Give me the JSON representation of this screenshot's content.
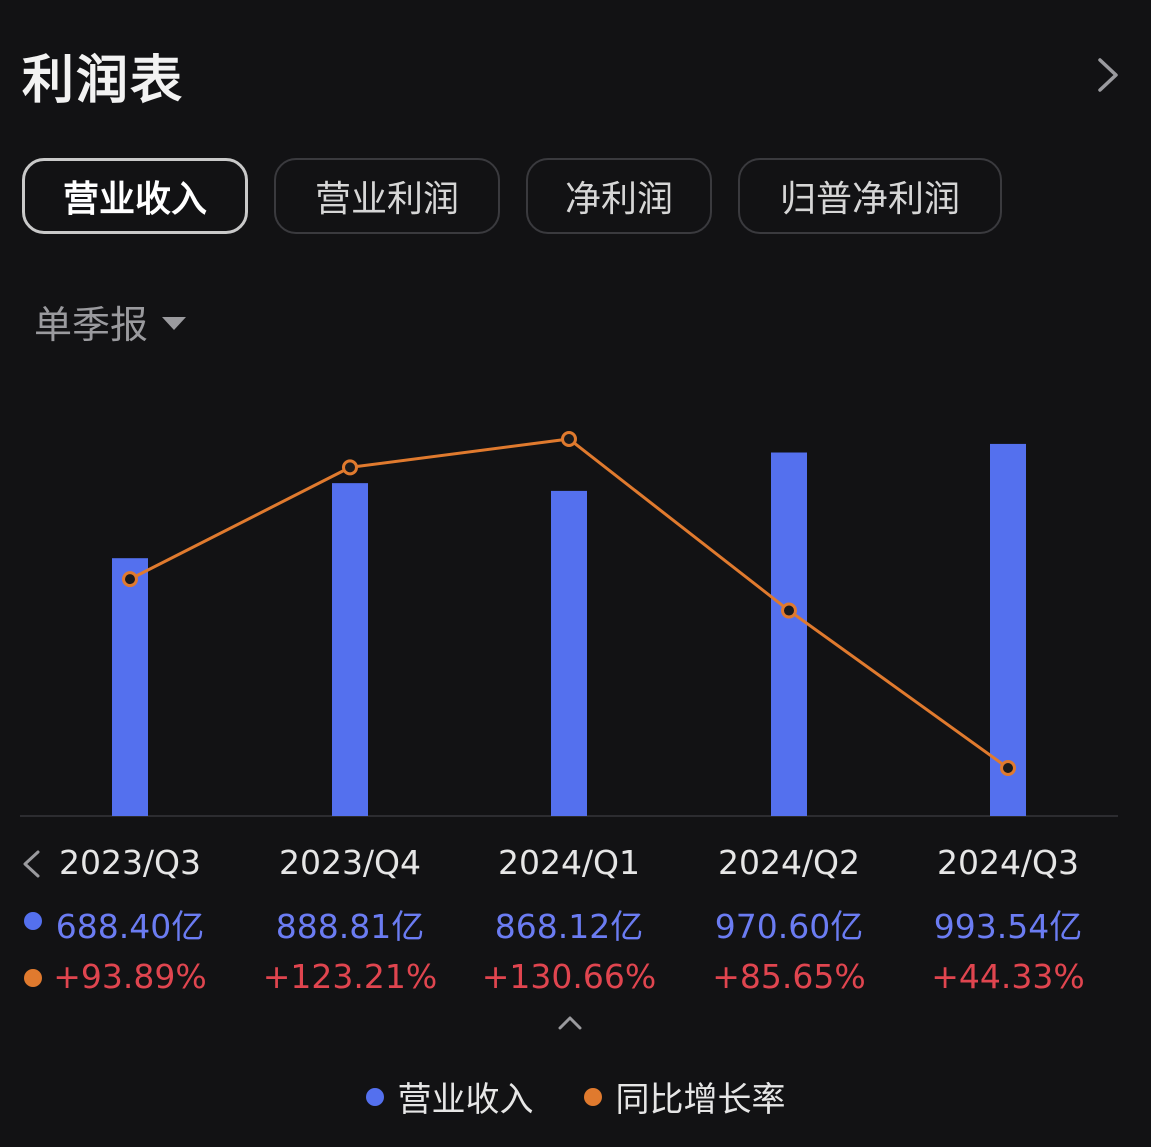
{
  "header": {
    "title": "利润表"
  },
  "tabs": [
    {
      "label": "营业收入",
      "active": true
    },
    {
      "label": "营业利润",
      "active": false
    },
    {
      "label": "净利润",
      "active": false
    },
    {
      "label": "归普净利润",
      "active": false
    }
  ],
  "period_selector": {
    "label": "单季报"
  },
  "colors": {
    "bar": "#5470ee",
    "line": "#e07a2e",
    "growth_text": "#e0454f",
    "value_text": "#6b7cf2"
  },
  "chart_data": {
    "type": "bar",
    "categories": [
      "2023/Q3",
      "2023/Q4",
      "2024/Q1",
      "2024/Q2",
      "2024/Q3"
    ],
    "series": [
      {
        "name": "营业收入",
        "type": "bar",
        "values": [
          688.4,
          888.81,
          868.12,
          970.6,
          993.54
        ],
        "labels": [
          "688.40亿",
          "888.81亿",
          "868.12亿",
          "970.60亿",
          "993.54亿"
        ]
      },
      {
        "name": "同比增长率",
        "type": "line",
        "values": [
          93.89,
          123.21,
          130.66,
          85.65,
          44.33
        ],
        "labels": [
          "+93.89%",
          "+123.21%",
          "+130.66%",
          "+85.65%",
          "+44.33%"
        ]
      }
    ],
    "legend": [
      "营业收入",
      "同比增长率"
    ],
    "legend_position": "bottom"
  }
}
